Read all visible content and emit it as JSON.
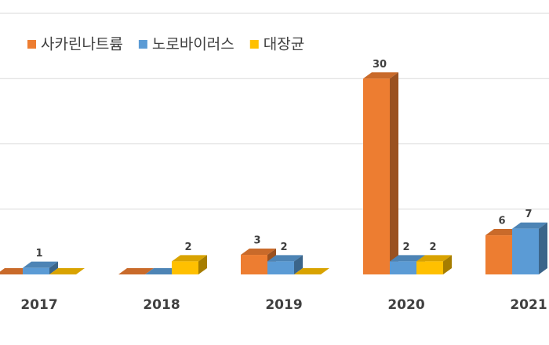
{
  "chart_data": {
    "type": "bar3d",
    "categories": [
      "2017",
      "2018",
      "2019",
      "2020",
      "2021"
    ],
    "series": [
      {
        "name": "사카린나트륨",
        "color": "#ed7d31",
        "values": [
          0,
          0,
          3,
          30,
          6
        ]
      },
      {
        "name": "노로바이러스",
        "color": "#5b9bd5",
        "values": [
          1,
          0,
          2,
          2,
          7
        ]
      },
      {
        "name": "대장균",
        "color": "#ffc000",
        "values": [
          0,
          2,
          0,
          2,
          null
        ]
      }
    ],
    "ylim": [
      0,
      40
    ],
    "yticks": [
      10,
      20,
      30,
      40
    ],
    "grid": true,
    "legend": "top-left"
  }
}
